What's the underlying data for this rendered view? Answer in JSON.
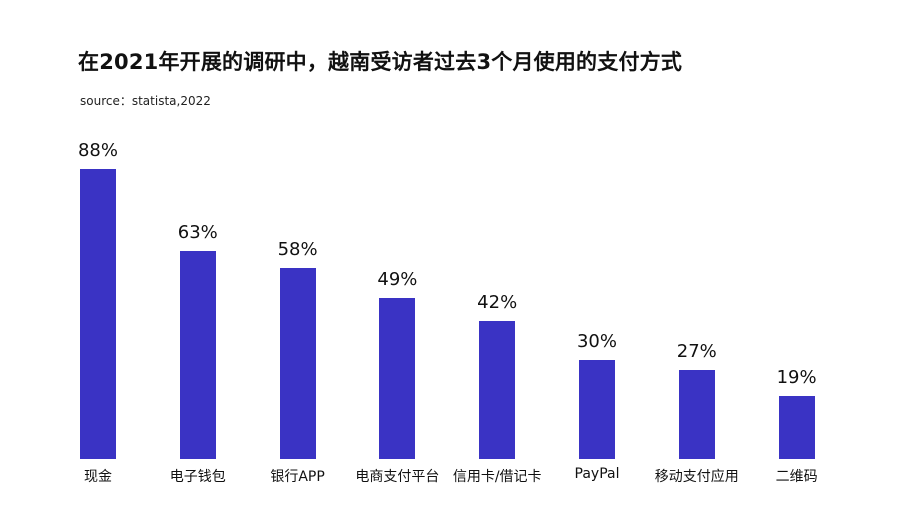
{
  "header": {
    "title": "在2021年开展的调研中，越南受访者过去3个月使用的支付方式",
    "source": "source：statista,2022"
  },
  "colors": {
    "bar": "#3A33C4",
    "text": "#111111",
    "background": "#FFFFFF"
  },
  "chart_data": {
    "type": "bar",
    "title": "在2021年开展的调研中，越南受访者过去3个月使用的支付方式",
    "subtitle": "source：statista,2022",
    "categories": [
      "现金",
      "电子钱包",
      "银行APP",
      "电商支付平台",
      "信用卡/借记卡",
      "PayPal",
      "移动支付应用",
      "二维码"
    ],
    "values": [
      88,
      63,
      58,
      49,
      42,
      30,
      27,
      19
    ],
    "value_labels": [
      "88%",
      "63%",
      "58%",
      "49%",
      "42%",
      "30%",
      "27%",
      "19%"
    ],
    "xlabel": "",
    "ylabel": "",
    "ylim": [
      0,
      100
    ],
    "unit": "%",
    "grid": false,
    "legend": null
  }
}
